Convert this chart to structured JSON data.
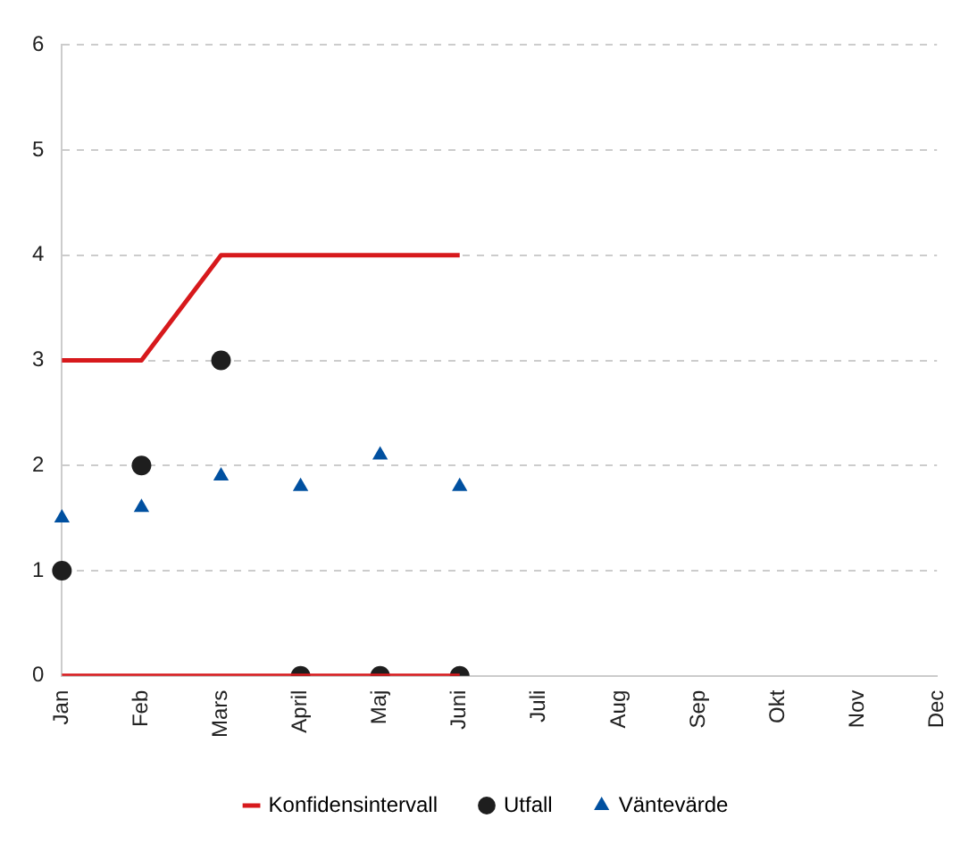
{
  "chart_data": {
    "type": "line",
    "categories": [
      "Jan",
      "Feb",
      "Mars",
      "April",
      "Maj",
      "Juni",
      "Juli",
      "Aug",
      "Sep",
      "Okt",
      "Nov",
      "Dec"
    ],
    "series": [
      {
        "name": "Konfidensintervall",
        "type": "line",
        "color": "#d7191c",
        "marker": "none",
        "values": [
          3,
          3,
          4,
          4,
          4,
          4,
          null,
          null,
          null,
          null,
          null,
          null
        ]
      },
      {
        "type": "line",
        "color": "#d7191c",
        "marker": "none",
        "values": [
          0,
          0,
          0,
          0,
          0,
          0,
          null,
          null,
          null,
          null,
          null,
          null
        ]
      },
      {
        "name": "Utfall",
        "type": "scatter",
        "color": "#1e1e1e",
        "marker": "circle",
        "values": [
          1,
          2,
          3,
          0,
          0,
          0,
          null,
          null,
          null,
          null,
          null,
          null
        ]
      },
      {
        "name": "Väntevärde",
        "type": "scatter",
        "color": "#0050a0",
        "marker": "triangle",
        "values": [
          1.5,
          1.6,
          1.9,
          1.8,
          2.1,
          1.8,
          null,
          null,
          null,
          null,
          null,
          null
        ]
      }
    ],
    "ylim": [
      0,
      6
    ],
    "yticks": [
      0,
      1,
      2,
      3,
      4,
      5,
      6
    ],
    "grid": "y",
    "legend": "bottom"
  }
}
